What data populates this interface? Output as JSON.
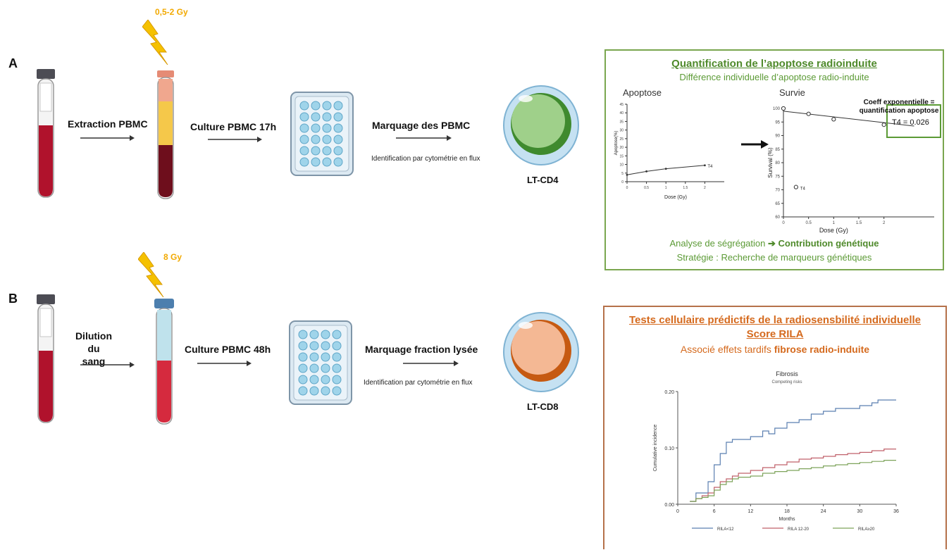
{
  "panelA": {
    "letter": "A",
    "dose": "0,5-2 Gy",
    "step1": "Extraction PBMC",
    "step2": "Culture PBMC 17h",
    "step3": "Marquage des PBMC",
    "step3_sub": "Identification par cytométrie en flux",
    "cell_label": "LT-CD4",
    "box": {
      "title": "Quantification de l’apoptose radioinduite",
      "subtitle": "Différence individuelle d’apoptose radio-induite",
      "left_plot_title": "Apoptose",
      "right_plot_title": "Survie",
      "annot_line1": "Coeff exponentielle =",
      "annot_line2": "quantification apoptose",
      "annot_value": "T4 = 0.026",
      "bottom1_pre": "Analyse de ségrégation ",
      "bottom1_arrow": "➔",
      "bottom1_bold": "Contribution génétique",
      "bottom2": "Stratégie : Recherche de marqueurs génétiques"
    }
  },
  "panelB": {
    "letter": "B",
    "dose": "8 Gy",
    "step1_line1": "Dilution du",
    "step1_line2": "sang",
    "step2": "Culture PBMC 48h",
    "step3": "Marquage fraction lysée",
    "step3_sub": "Identification par cytométrie en flux",
    "cell_label": "LT-CD8",
    "box": {
      "title1": "Tests cellulaire prédictifs de la radiosensbilité individuelle",
      "title2": "Score RILA",
      "subtitle_pre": "Associé effets tardifs ",
      "subtitle_bold": "fibrose radio-induite"
    }
  },
  "chart_data": [
    {
      "type": "line",
      "xlabel": "Dose (Gy)",
      "ylabel": "Apoptose(%)",
      "xlim": [
        0,
        2.5
      ],
      "ylim": [
        0,
        45
      ],
      "x_ticks": [
        "0",
        "0.5",
        "1",
        "1.5",
        "2"
      ],
      "y_ticks": [
        "0",
        "5",
        "10",
        "15",
        "20",
        "25",
        "30",
        "35",
        "40",
        "45"
      ],
      "series": [
        {
          "name": "T4",
          "x": [
            0,
            0.5,
            1,
            2
          ],
          "y": [
            4,
            6,
            7.5,
            9.5
          ]
        }
      ]
    },
    {
      "type": "scatter",
      "xlabel": "Dose (Gy)",
      "ylabel": "Survival (%)",
      "xlim": [
        0,
        3
      ],
      "ylim": [
        60,
        100
      ],
      "x_ticks": [
        "0",
        "0.5",
        "1",
        "1.5",
        "2"
      ],
      "y_ticks": [
        "60",
        "65",
        "70",
        "75",
        "80",
        "85",
        "90",
        "95",
        "100"
      ],
      "series": [
        {
          "name": "T4",
          "x": [
            0,
            0.5,
            1,
            2
          ],
          "y": [
            100,
            98,
            96,
            94
          ]
        }
      ],
      "legend_point": {
        "x": 0.25,
        "y": 71,
        "label": "T4"
      }
    },
    {
      "type": "line",
      "title": "Fibrosis",
      "subtitle": "Competing risks",
      "xlabel": "Months",
      "ylabel": "Cumulative incidence",
      "xlim": [
        0,
        36
      ],
      "ylim": [
        0,
        0.2
      ],
      "x_ticks": [
        "0",
        "6",
        "12",
        "18",
        "24",
        "30",
        "36"
      ],
      "y_ticks": [
        "0.00",
        "0.10",
        "0.20"
      ],
      "colors": [
        "#5b7fb0",
        "#c0606a",
        "#7da35a"
      ],
      "series": [
        {
          "name": "RILA<12",
          "x": [
            2,
            3,
            4,
            5,
            6,
            7,
            8,
            9,
            10,
            12,
            14,
            15,
            16,
            18,
            20,
            22,
            24,
            26,
            28,
            30,
            32,
            33,
            36
          ],
          "y": [
            0.005,
            0.02,
            0.02,
            0.04,
            0.07,
            0.09,
            0.11,
            0.115,
            0.115,
            0.12,
            0.13,
            0.125,
            0.135,
            0.145,
            0.15,
            0.16,
            0.165,
            0.17,
            0.17,
            0.175,
            0.18,
            0.185,
            0.185
          ]
        },
        {
          "name": "RILA 12-20",
          "x": [
            2,
            3,
            4,
            5,
            6,
            7,
            8,
            9,
            10,
            12,
            14,
            16,
            18,
            20,
            22,
            24,
            26,
            28,
            30,
            32,
            34,
            36
          ],
          "y": [
            0.005,
            0.01,
            0.015,
            0.02,
            0.03,
            0.04,
            0.045,
            0.05,
            0.055,
            0.06,
            0.065,
            0.07,
            0.075,
            0.08,
            0.082,
            0.085,
            0.088,
            0.09,
            0.092,
            0.095,
            0.098,
            0.098
          ]
        },
        {
          "name": "RILA≥20",
          "x": [
            2,
            3,
            4,
            5,
            6,
            7,
            8,
            9,
            10,
            12,
            14,
            16,
            18,
            20,
            22,
            24,
            26,
            28,
            30,
            32,
            34,
            36
          ],
          "y": [
            0.005,
            0.01,
            0.012,
            0.015,
            0.025,
            0.035,
            0.04,
            0.045,
            0.048,
            0.05,
            0.055,
            0.058,
            0.06,
            0.063,
            0.065,
            0.068,
            0.07,
            0.072,
            0.074,
            0.076,
            0.078,
            0.078
          ]
        }
      ],
      "legend_placement": "bottom"
    }
  ]
}
